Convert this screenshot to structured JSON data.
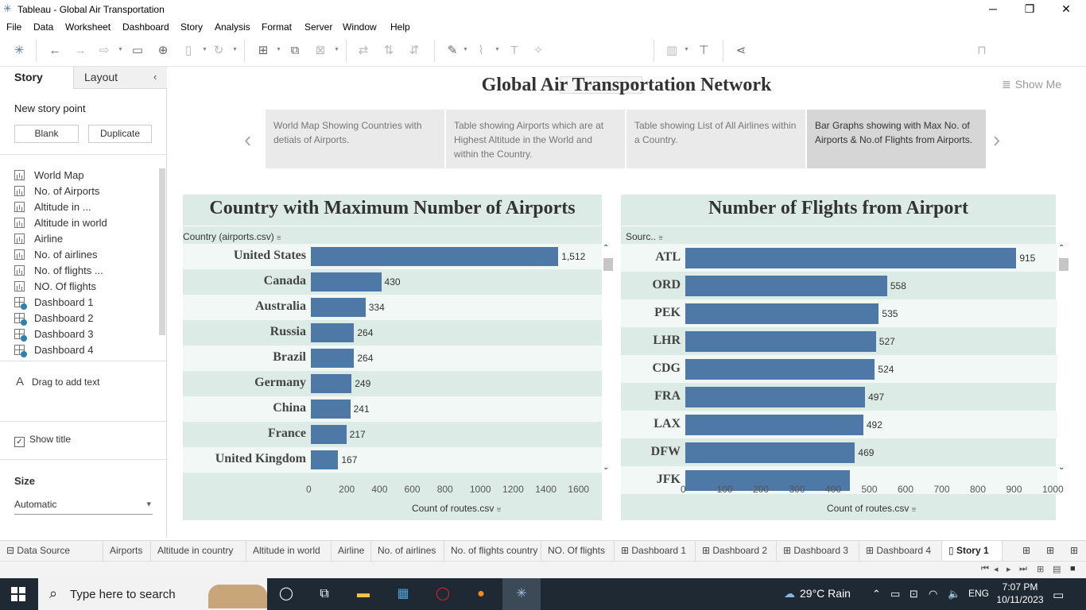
{
  "window": {
    "title": "Tableau - Global Air Transportation",
    "minimize": "─",
    "restore": "❐",
    "close": "✕"
  },
  "menu": [
    "File",
    "Data",
    "Worksheet",
    "Dashboard",
    "Story",
    "Analysis",
    "Format",
    "Server",
    "Window",
    "Help"
  ],
  "toolbar": {
    "show_me": "Show Me"
  },
  "left_panel": {
    "tabs": [
      "Story",
      "Layout"
    ],
    "new_story_point": "New story point",
    "blank_button": "Blank",
    "duplicate_button": "Duplicate",
    "sheets": [
      {
        "label": "World Map",
        "kind": "sheet"
      },
      {
        "label": "No. of Airports",
        "kind": "sheet"
      },
      {
        "label": "Altitude in ...",
        "kind": "sheet"
      },
      {
        "label": "Altitude in world",
        "kind": "sheet"
      },
      {
        "label": "Airline",
        "kind": "sheet"
      },
      {
        "label": "No. of airlines",
        "kind": "sheet"
      },
      {
        "label": "No. of flights ...",
        "kind": "sheet"
      },
      {
        "label": "NO. Of flights",
        "kind": "sheet"
      },
      {
        "label": "Dashboard 1",
        "kind": "dashboard"
      },
      {
        "label": "Dashboard 2",
        "kind": "dashboard"
      },
      {
        "label": "Dashboard 3",
        "kind": "dashboard"
      },
      {
        "label": "Dashboard 4",
        "kind": "dashboard"
      }
    ],
    "drag_text": "Drag to add text",
    "show_title": "Show title",
    "show_title_checked": true,
    "size_heading": "Size",
    "size_value": "Automatic"
  },
  "story": {
    "title": "Global Air Transportation Network",
    "points": [
      "World Map Showing Countries with detials of Airports.",
      "Table showing Airports which are at Highest Altitude in the World and within the Country.",
      "Table showing List of All Airlines within a Country.",
      "Bar Graphs showing with Max No. of Airports & No.of Flights from Airports."
    ],
    "active_point": 3
  },
  "chart_data": [
    {
      "type": "bar",
      "orientation": "horizontal",
      "title": "Country with Maximum Number of Airports",
      "field_header": "Country (airports.csv)",
      "xlabel": "Count of routes.csv",
      "categories": [
        "United States",
        "Canada",
        "Australia",
        "Russia",
        "Brazil",
        "Germany",
        "China",
        "France",
        "United Kingdom"
      ],
      "values": [
        1512,
        430,
        334,
        264,
        264,
        249,
        241,
        217,
        167
      ],
      "value_labels": [
        "1,512",
        "430",
        "334",
        "264",
        "264",
        "249",
        "241",
        "217",
        "167"
      ],
      "xticks": [
        "0",
        "200",
        "400",
        "600",
        "800",
        "1000",
        "1200",
        "1400",
        "1600"
      ],
      "xlim": [
        0,
        1700
      ],
      "color": "#4e79a7"
    },
    {
      "type": "bar",
      "orientation": "horizontal",
      "title": "Number of Flights from Airport",
      "field_header": "Sourc..",
      "xlabel": "Count of routes.csv",
      "categories": [
        "ATL",
        "ORD",
        "PEK",
        "LHR",
        "CDG",
        "FRA",
        "LAX",
        "DFW",
        "JFK"
      ],
      "values": [
        915,
        558,
        535,
        527,
        524,
        497,
        492,
        469,
        456
      ],
      "value_labels": [
        "915",
        "558",
        "535",
        "527",
        "524",
        "497",
        "492",
        "469",
        ""
      ],
      "xticks": [
        "0",
        "100",
        "200",
        "300",
        "400",
        "500",
        "600",
        "700",
        "800",
        "900",
        "1000"
      ],
      "xlim": [
        0,
        1000
      ],
      "color": "#4e79a7"
    }
  ],
  "sheet_tabs": [
    {
      "label": "Data Source",
      "icon": "database-icon"
    },
    {
      "label": "Airports"
    },
    {
      "label": "Altitude in country"
    },
    {
      "label": "Altitude in world"
    },
    {
      "label": "Airline"
    },
    {
      "label": "No. of airlines"
    },
    {
      "label": "No. of flights country"
    },
    {
      "label": "NO. Of flights"
    },
    {
      "label": "Dashboard 1"
    },
    {
      "label": "Dashboard 2"
    },
    {
      "label": "Dashboard 3"
    },
    {
      "label": "Dashboard 4"
    },
    {
      "label": "Story 1",
      "active": true
    }
  ],
  "taskbar": {
    "search_placeholder": "Type here to search",
    "weather": "29°C  Rain",
    "language": "ENG",
    "time": "7:07 PM",
    "date": "10/11/2023"
  }
}
